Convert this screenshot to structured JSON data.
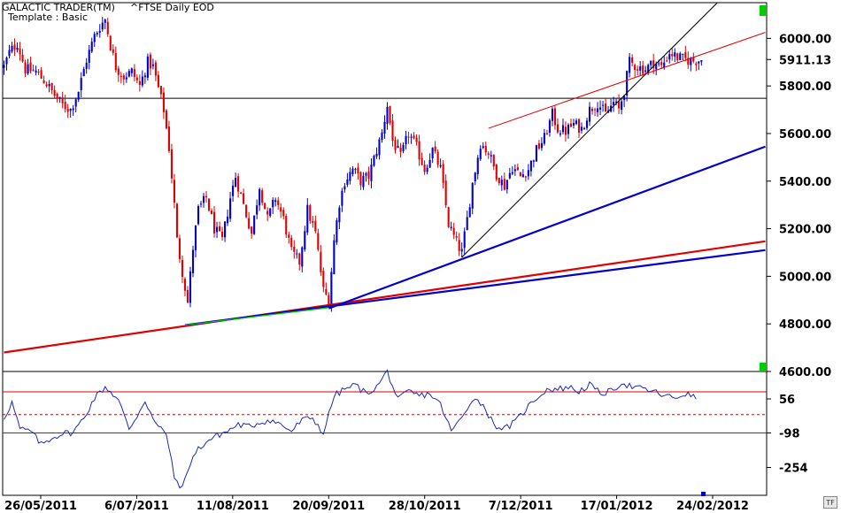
{
  "header": {
    "app_title": "GALACTIC TRADER(TM)",
    "template": "Template : Basic",
    "symbol": "^FTSE Daily EOD"
  },
  "badge": {
    "label": "TF"
  },
  "colors": {
    "up": "#0000cc",
    "down": "#e00000",
    "trend_red": "#e00000",
    "trend_blue": "#0000cc",
    "indicator": "#1a2ab8",
    "marker_green": "#00cc00"
  },
  "chart_data": [
    {
      "type": "candlestick",
      "title": "^FTSE Daily EOD",
      "ylim": [
        4600,
        6150
      ],
      "y_ticks": [
        {
          "label": "6000.00",
          "value": 6000
        },
        {
          "label": "5911.13",
          "value": 5911.13
        },
        {
          "label": "5800.00",
          "value": 5800
        },
        {
          "label": "5600.00",
          "value": 5600
        },
        {
          "label": "5400.00",
          "value": 5400
        },
        {
          "label": "5200.00",
          "value": 5200
        },
        {
          "label": "5000.00",
          "value": 5000
        },
        {
          "label": "4800.00",
          "value": 4800
        },
        {
          "label": "4600.00",
          "value": 4600
        }
      ],
      "x_labels": [
        "26/05/2011",
        "6/07/2011",
        "11/08/2011",
        "20/09/2011",
        "28/10/2011",
        "7/12/2011",
        "17/01/2012",
        "24/02/2012"
      ],
      "last_close": 5911.13,
      "horizontal_line": 5748,
      "price_path": [
        [
          0,
          5880
        ],
        [
          2,
          5940
        ],
        [
          5,
          5980
        ],
        [
          8,
          5870
        ],
        [
          12,
          5860
        ],
        [
          16,
          5810
        ],
        [
          19,
          5760
        ],
        [
          22,
          5720
        ],
        [
          25,
          5700
        ],
        [
          28,
          5780
        ],
        [
          31,
          5910
        ],
        [
          34,
          6010
        ],
        [
          36,
          6050
        ],
        [
          38,
          6080
        ],
        [
          40,
          5970
        ],
        [
          42,
          5880
        ],
        [
          45,
          5840
        ],
        [
          48,
          5860
        ],
        [
          51,
          5800
        ],
        [
          54,
          5900
        ],
        [
          56,
          5880
        ],
        [
          58,
          5790
        ],
        [
          60,
          5700
        ],
        [
          62,
          5540
        ],
        [
          64,
          5300
        ],
        [
          65,
          5150
        ],
        [
          67,
          5020
        ],
        [
          69,
          4890
        ],
        [
          71,
          5120
        ],
        [
          73,
          5280
        ],
        [
          76,
          5330
        ],
        [
          79,
          5200
        ],
        [
          82,
          5150
        ],
        [
          85,
          5330
        ],
        [
          87,
          5420
        ],
        [
          90,
          5300
        ],
        [
          93,
          5180
        ],
        [
          96,
          5380
        ],
        [
          99,
          5240
        ],
        [
          102,
          5330
        ],
        [
          105,
          5240
        ],
        [
          108,
          5100
        ],
        [
          111,
          5060
        ],
        [
          114,
          5280
        ],
        [
          117,
          5180
        ],
        [
          120,
          4940
        ],
        [
          122,
          4900
        ],
        [
          124,
          5150
        ],
        [
          126,
          5310
        ],
        [
          128,
          5400
        ],
        [
          131,
          5450
        ],
        [
          134,
          5400
        ],
        [
          137,
          5420
        ],
        [
          140,
          5530
        ],
        [
          142,
          5600
        ],
        [
          144,
          5720
        ],
        [
          146,
          5570
        ],
        [
          149,
          5500
        ],
        [
          152,
          5600
        ],
        [
          155,
          5540
        ],
        [
          158,
          5450
        ],
        [
          161,
          5530
        ],
        [
          164,
          5450
        ],
        [
          167,
          5220
        ],
        [
          170,
          5140
        ],
        [
          172,
          5100
        ],
        [
          174,
          5240
        ],
        [
          176,
          5390
        ],
        [
          179,
          5560
        ],
        [
          182,
          5520
        ],
        [
          185,
          5430
        ],
        [
          188,
          5380
        ],
        [
          191,
          5460
        ],
        [
          194,
          5420
        ],
        [
          197,
          5450
        ],
        [
          200,
          5530
        ],
        [
          203,
          5580
        ],
        [
          206,
          5680
        ],
        [
          208,
          5620
        ],
        [
          211,
          5610
        ],
        [
          214,
          5640
        ],
        [
          217,
          5620
        ],
        [
          220,
          5700
        ],
        [
          223,
          5730
        ],
        [
          226,
          5680
        ],
        [
          229,
          5730
        ],
        [
          231,
          5700
        ],
        [
          233,
          5780
        ],
        [
          235,
          5900
        ],
        [
          238,
          5880
        ],
        [
          241,
          5870
        ],
        [
          244,
          5900
        ],
        [
          247,
          5880
        ],
        [
          250,
          5940
        ],
        [
          253,
          5920
        ],
        [
          256,
          5910
        ],
        [
          259,
          5905
        ],
        [
          262,
          5911
        ]
      ],
      "trendlines": [
        {
          "name": "red-long",
          "color": "red",
          "x1": 0,
          "y1": 4680,
          "x2": 286,
          "y2": 5147
        },
        {
          "name": "blue-long",
          "color": "blue",
          "x1": 68,
          "y1": 4795,
          "x2": 286,
          "y2": 5110
        },
        {
          "name": "blue-mid",
          "color": "blue",
          "x1": 122,
          "y1": 4865,
          "x2": 286,
          "y2": 5545
        },
        {
          "name": "thin-black",
          "color": "black",
          "x1": 172,
          "y1": 5080,
          "x2": 268,
          "y2": 6150
        },
        {
          "name": "thin-red",
          "color": "red",
          "x1": 182,
          "y1": 5622,
          "x2": 286,
          "y2": 6025
        }
      ]
    },
    {
      "type": "line",
      "title": "",
      "ylim": [
        -380,
        180
      ],
      "y_ticks": [
        {
          "label": "56",
          "value": 56
        },
        {
          "label": "-98",
          "value": -98
        },
        {
          "label": "-254",
          "value": -254
        }
      ],
      "reference_lines": [
        {
          "value": 88,
          "style": "solid"
        },
        {
          "value": -15,
          "style": "dashed"
        },
        {
          "value": -98,
          "style": "solid"
        }
      ],
      "series": [
        {
          "name": "",
          "values": [
            [
              0,
              -30
            ],
            [
              3,
              40
            ],
            [
              6,
              -80
            ],
            [
              10,
              -90
            ],
            [
              14,
              -150
            ],
            [
              18,
              -120
            ],
            [
              22,
              -100
            ],
            [
              26,
              -95
            ],
            [
              30,
              -30
            ],
            [
              34,
              60
            ],
            [
              38,
              110
            ],
            [
              40,
              90
            ],
            [
              43,
              50
            ],
            [
              47,
              -80
            ],
            [
              50,
              -20
            ],
            [
              53,
              50
            ],
            [
              57,
              -60
            ],
            [
              61,
              -100
            ],
            [
              64,
              -300
            ],
            [
              67,
              -350
            ],
            [
              70,
              -230
            ],
            [
              73,
              -170
            ],
            [
              77,
              -130
            ],
            [
              80,
              -110
            ],
            [
              84,
              -90
            ],
            [
              88,
              -60
            ],
            [
              92,
              -70
            ],
            [
              96,
              -50
            ],
            [
              100,
              -40
            ],
            [
              104,
              -60
            ],
            [
              108,
              -90
            ],
            [
              112,
              -40
            ],
            [
              116,
              -30
            ],
            [
              120,
              -100
            ],
            [
              124,
              70
            ],
            [
              128,
              100
            ],
            [
              132,
              120
            ],
            [
              136,
              80
            ],
            [
              140,
              110
            ],
            [
              144,
              180
            ],
            [
              148,
              50
            ],
            [
              152,
              90
            ],
            [
              156,
              70
            ],
            [
              160,
              80
            ],
            [
              164,
              30
            ],
            [
              168,
              -90
            ],
            [
              172,
              -30
            ],
            [
              176,
              60
            ],
            [
              180,
              30
            ],
            [
              184,
              -60
            ],
            [
              188,
              -80
            ],
            [
              192,
              -50
            ],
            [
              196,
              10
            ],
            [
              200,
              60
            ],
            [
              204,
              100
            ],
            [
              208,
              100
            ],
            [
              212,
              110
            ],
            [
              216,
              90
            ],
            [
              220,
              120
            ],
            [
              224,
              80
            ],
            [
              228,
              90
            ],
            [
              232,
              130
            ],
            [
              236,
              110
            ],
            [
              240,
              100
            ],
            [
              244,
              90
            ],
            [
              248,
              70
            ],
            [
              252,
              60
            ],
            [
              256,
              80
            ],
            [
              260,
              60
            ]
          ]
        }
      ]
    }
  ]
}
